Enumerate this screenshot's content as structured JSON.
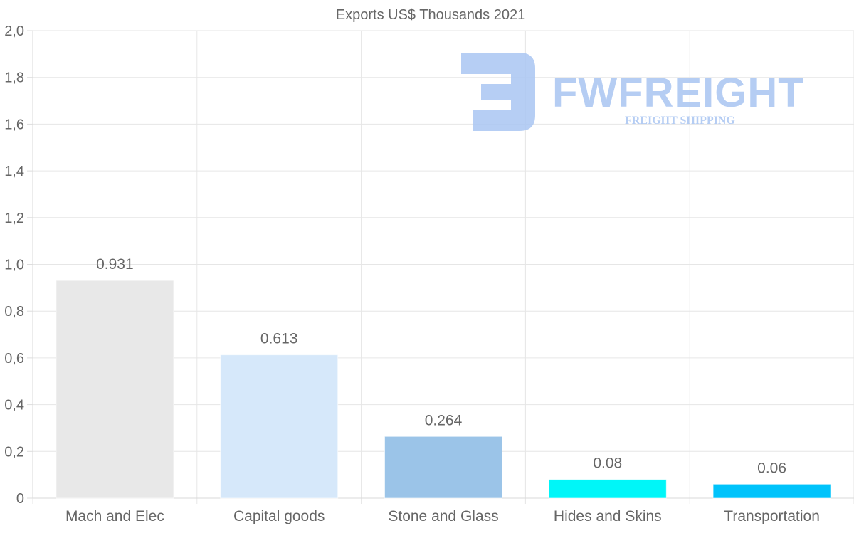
{
  "watermark": {
    "brand": "FWFREIGHT",
    "tagline": "FREIGHT SHIPPING"
  },
  "chart_data": {
    "type": "bar",
    "title": "Exports US$ Thousands 2021",
    "categories": [
      "Mach and Elec",
      "Capital goods",
      "Stone and Glass",
      "Hides and Skins",
      "Transportation"
    ],
    "values": [
      0.931,
      0.613,
      0.264,
      0.08,
      0.06
    ],
    "value_labels": [
      "0.931",
      "0.613",
      "0.264",
      "0.08",
      "0.06"
    ],
    "colors": [
      "#e8e8e8",
      "#d6e8fa",
      "#9bc4e8",
      "#00f6f8",
      "#00c3fb"
    ],
    "ylim": [
      0,
      2.0
    ],
    "yticks": [
      0,
      0.2,
      0.4,
      0.6,
      0.8,
      1.0,
      1.2,
      1.4,
      1.6,
      1.8,
      2.0
    ],
    "ytick_labels": [
      "0",
      "0,2",
      "0,4",
      "0,6",
      "0,8",
      "1,0",
      "1,2",
      "1,4",
      "1,6",
      "1,8",
      "2,0"
    ],
    "xlabel": "",
    "ylabel": "",
    "grid": true,
    "legend": "none"
  }
}
